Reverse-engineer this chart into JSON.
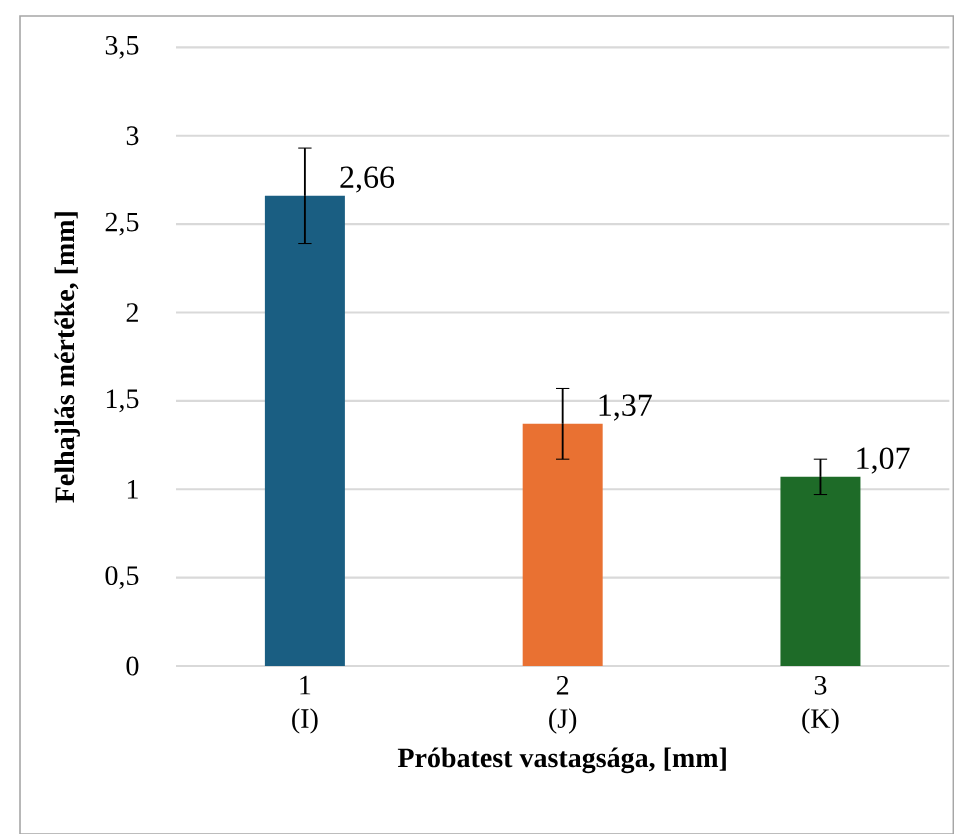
{
  "chart_data": {
    "type": "bar",
    "xlabel": "Próbatest vastagsága, [mm]",
    "ylabel": "Felhajlás mértéke, [mm]",
    "categories": [
      "1 (I)",
      "2 (J)",
      "3 (K)"
    ],
    "values": [
      2.66,
      1.37,
      1.07
    ],
    "colors": [
      "#1a5e82",
      "#e97132",
      "#1e6b28"
    ],
    "errors": [
      0.27,
      0.2,
      0.1
    ],
    "value_labels": [
      "2,66",
      "1,37",
      "1,07"
    ],
    "ylim": [
      0,
      3.5
    ],
    "yticks": [
      {
        "value": 0,
        "label": "0"
      },
      {
        "value": 0.5,
        "label": "0,5"
      },
      {
        "value": 1,
        "label": "1"
      },
      {
        "value": 1.5,
        "label": "1,5"
      },
      {
        "value": 2,
        "label": "2"
      },
      {
        "value": 2.5,
        "label": "2,5"
      },
      {
        "value": 3,
        "label": "3"
      },
      {
        "value": 3.5,
        "label": "3,5"
      }
    ],
    "grid": "y"
  }
}
